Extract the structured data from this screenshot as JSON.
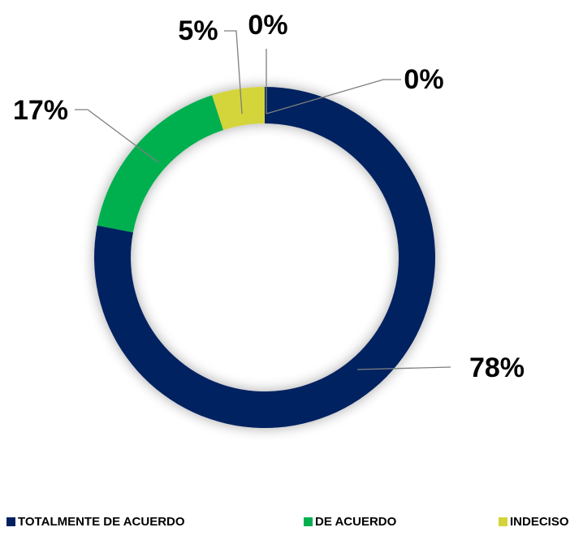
{
  "chart_data": {
    "type": "donut",
    "categories": [
      "TOTALMENTE DE ACUERDO",
      "DE ACUERDO",
      "INDECISO",
      null,
      null
    ],
    "values": [
      78,
      17,
      5,
      0,
      0
    ],
    "value_labels": [
      "78%",
      "17%",
      "5%",
      "0%",
      "0%"
    ],
    "colors": [
      "#002060",
      "#00b050",
      "#d4d43a",
      "#c55a11",
      "#7f7f7f"
    ],
    "legend": "bottom"
  }
}
